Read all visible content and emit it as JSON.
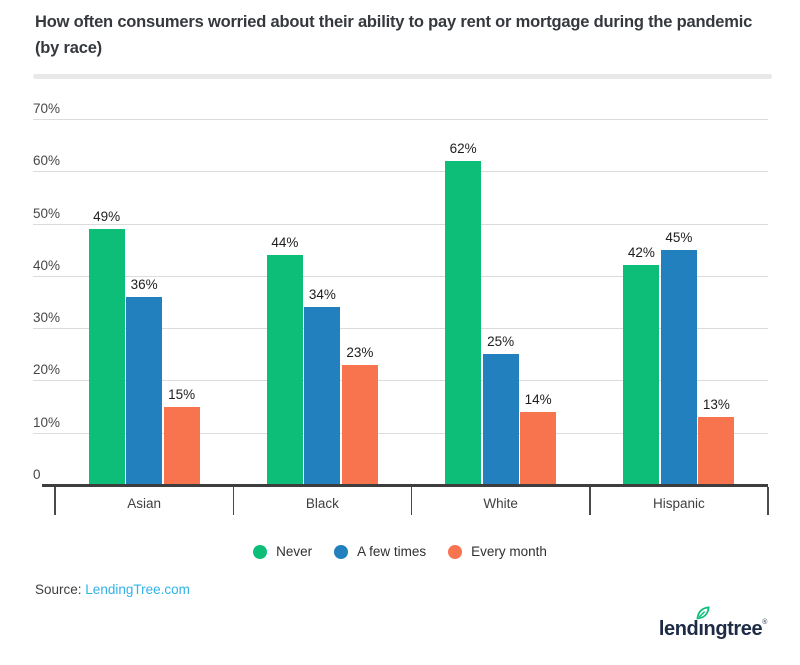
{
  "chart_data": {
    "type": "bar",
    "title": "How often consumers worried about their ability to pay rent or mortgage during the pandemic (by race)",
    "categories": [
      "Asian",
      "Black",
      "White",
      "Hispanic"
    ],
    "series": [
      {
        "name": "Never",
        "color": "#0dbe78",
        "values": [
          49,
          44,
          62,
          42
        ]
      },
      {
        "name": "A few times",
        "color": "#2280bf",
        "values": [
          36,
          34,
          25,
          45
        ]
      },
      {
        "name": "Every month",
        "color": "#f8744f",
        "values": [
          15,
          23,
          14,
          13
        ]
      }
    ],
    "value_label_suffix": "%",
    "ylim": [
      0,
      70
    ],
    "ytick_step": 10,
    "ytick_labels": [
      "0",
      "10%",
      "20%",
      "30%",
      "40%",
      "50%",
      "60%",
      "70%"
    ],
    "grid": true,
    "legend_position": "bottom"
  },
  "source": {
    "label": "Source:",
    "link_text": "LendingTree.com"
  },
  "logo": {
    "text_before_leaf": "lend",
    "leaf_letter": "ı",
    "text_after_leaf": "ngtree",
    "trademark": "®",
    "leaf_color": "#0abf79",
    "text_color": "#1e2b47"
  },
  "colors": {
    "link": "#31b2e7",
    "title_text": "#35393e",
    "axis_text": "#474747",
    "value_label": "#1d1d1d",
    "gridline": "#dcdcdc",
    "axis_line": "#3d3d3d",
    "tick": "#4a4a4a",
    "divider": "#e8e8e8"
  }
}
